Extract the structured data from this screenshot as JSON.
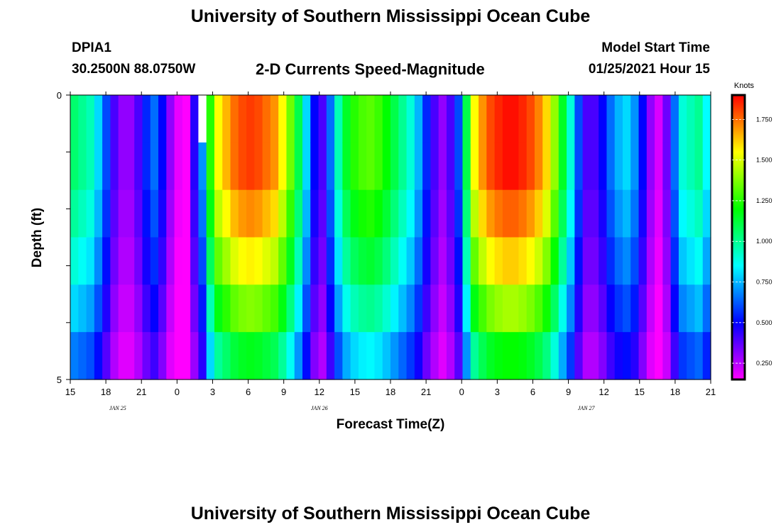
{
  "header": {
    "title": "University of Southern Mississippi Ocean Cube",
    "station_id": "DPIA1",
    "station_coords": "30.2500N 88.0750W",
    "product": "2-D Currents Speed-Magnitude",
    "model_start_label": "Model Start Time",
    "model_start_value": "01/25/2021 Hour 15"
  },
  "footer": {
    "title": "University of Southern Mississippi Ocean Cube"
  },
  "chart_data": {
    "type": "heatmap",
    "title": "2-D Currents Speed-Magnitude",
    "xlabel": "Forecast Time(Z)",
    "ylabel": "Depth (ft)",
    "colorbar_label": "Knots",
    "ylim": [
      0,
      5
    ],
    "y_tick_labels": [
      "0",
      "5"
    ],
    "x_hours": [
      0,
      54
    ],
    "x_tick_labels": [
      "15",
      "18",
      "21",
      "0",
      "3",
      "6",
      "9",
      "12",
      "15",
      "18",
      "21",
      "0",
      "3",
      "6",
      "9",
      "12",
      "15",
      "18",
      "21"
    ],
    "day_labels": [
      {
        "label": "JAN 25",
        "hour": 4
      },
      {
        "label": "JAN 26",
        "hour": 21
      },
      {
        "label": "JAN 27",
        "hour": 43.5
      }
    ],
    "colorbar_ticks": [
      "0.250",
      "0.500",
      "0.750",
      "1.000",
      "1.250",
      "1.500",
      "1.750"
    ],
    "zlim": [
      0.15,
      1.9
    ],
    "depth_layers": [
      0,
      1,
      2,
      3,
      4,
      5
    ],
    "profile_fraction": [
      1.0,
      1.0,
      0.94,
      0.86,
      0.76,
      0.64
    ],
    "surface_speed_knots": [
      1.05,
      1.0,
      0.95,
      0.8,
      0.6,
      0.4,
      0.3,
      0.3,
      0.4,
      0.55,
      0.65,
      0.5,
      0.3,
      0.18,
      0.15,
      0.45,
      0.7,
      1.25,
      1.55,
      1.65,
      1.75,
      1.8,
      1.82,
      1.8,
      1.75,
      1.7,
      1.55,
      1.35,
      1.1,
      0.8,
      0.5,
      0.4,
      0.65,
      0.95,
      1.15,
      1.25,
      1.3,
      1.32,
      1.28,
      1.2,
      1.1,
      1.0,
      0.9,
      0.75,
      0.55,
      0.4,
      0.3,
      0.4,
      0.6,
      1.1,
      1.55,
      1.7,
      1.8,
      1.85,
      1.88,
      1.88,
      1.85,
      1.8,
      1.72,
      1.6,
      1.4,
      1.15,
      0.9,
      0.6,
      0.4,
      0.4,
      0.5,
      0.65,
      0.75,
      0.8,
      0.7,
      0.5,
      0.3,
      0.2,
      0.35,
      0.65,
      0.9,
      0.95,
      1.0,
      0.85
    ],
    "missing_cells": [
      {
        "time_index": 16,
        "layer": 0
      }
    ]
  }
}
